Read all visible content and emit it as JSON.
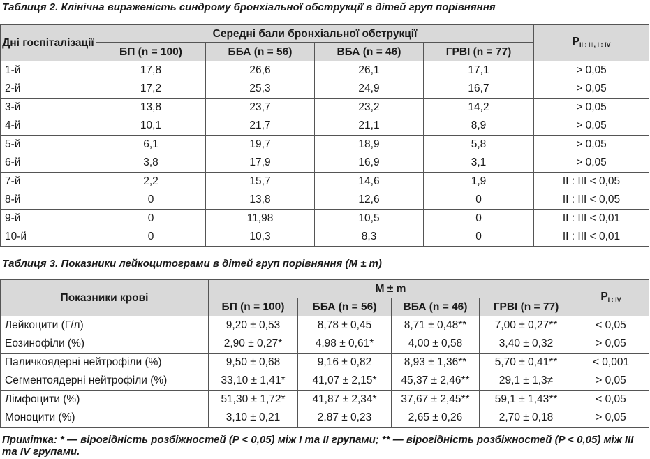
{
  "table2": {
    "caption": "Таблиця 2.  Клінічна вираженість синдрому бронхіальної обструкції в дітей груп порівняння",
    "header": {
      "col_day": "Дні госпіталізації",
      "group": "Середні бали бронхіальної обструкції",
      "subcols": [
        "БП (n = 100)",
        "ББА (n = 56)",
        "ВБА (n = 46)",
        "ГРВІ (n = 77)"
      ],
      "p_main": "P",
      "p_sub": "II : III, I : IV"
    },
    "rows": [
      [
        "1-й",
        "17,8",
        "26,6",
        "26,1",
        "17,1",
        "> 0,05"
      ],
      [
        "2-й",
        "17,2",
        "25,3",
        "24,9",
        "16,7",
        "> 0,05"
      ],
      [
        "3-й",
        "13,8",
        "23,7",
        "23,2",
        "14,2",
        "> 0,05"
      ],
      [
        "4-й",
        "10,1",
        "21,7",
        "21,1",
        "8,9",
        "> 0,05"
      ],
      [
        "5-й",
        "6,1",
        "19,7",
        "18,9",
        "5,8",
        "> 0,05"
      ],
      [
        "6-й",
        "3,8",
        "17,9",
        "16,9",
        "3,1",
        "> 0,05"
      ],
      [
        "7-й",
        "2,2",
        "15,7",
        "14,6",
        "1,9",
        "II : III < 0,05"
      ],
      [
        "8-й",
        "0",
        "13,8",
        "12,6",
        "0",
        "II : III < 0,05"
      ],
      [
        "9-й",
        "0",
        "11,98",
        "10,5",
        "0",
        "II : III < 0,01"
      ],
      [
        "10-й",
        "0",
        "10,3",
        "8,3",
        "0",
        "II : III < 0,01"
      ]
    ]
  },
  "table3": {
    "caption": "Таблиця 3.  Показники лейкоцитограми в дітей груп порівняння (M ± m)",
    "header": {
      "col_indicator": "Показники крові",
      "group": "M ± m",
      "subcols": [
        "БП (n = 100)",
        "ББА (n = 56)",
        "ВБА (n = 46)",
        "ГРВІ (n = 77)"
      ],
      "p_main": "P",
      "p_sub": "I : IV"
    },
    "rows": [
      [
        "Лейкоцити (Г/л)",
        "9,20 ± 0,53",
        "8,78 ± 0,45",
        "8,71 ± 0,48**",
        "7,00 ± 0,27**",
        "< 0,05"
      ],
      [
        "Еозинофіли (%)",
        "2,90 ± 0,27*",
        "4,98 ± 0,61*",
        "4,00 ± 0,58",
        "3,40 ± 0,32",
        "> 0,05"
      ],
      [
        "Паличкоядерні нейтрофіли (%)",
        "9,50 ± 0,68",
        "9,16 ± 0,82",
        "8,93 ± 1,36**",
        "5,70 ± 0,41**",
        "< 0,001"
      ],
      [
        "Сегментоядерні нейтрофіли (%)",
        "33,10 ± 1,41*",
        "41,07 ± 2,15*",
        "45,37 ± 2,46**",
        "29,1 ± 1,3≠",
        "> 0,05"
      ],
      [
        "Лімфоцити (%)",
        "51,30 ± 1,72*",
        "41,87 ± 2,34*",
        "37,67 ± 2,45**",
        "59,1 ± 1,43**",
        "< 0,05"
      ],
      [
        "Моноцити (%)",
        "3,10 ± 0,21",
        "2,87 ± 0,23",
        "2,65 ± 0,26",
        "2,70 ± 0,18",
        "> 0,05"
      ]
    ]
  },
  "note": "Примітка: * — вірогідність розбіжностей (P < 0,05) між I та II групами; ** — вірогідність розбіжностей (P < 0,05) між III та IV групами."
}
